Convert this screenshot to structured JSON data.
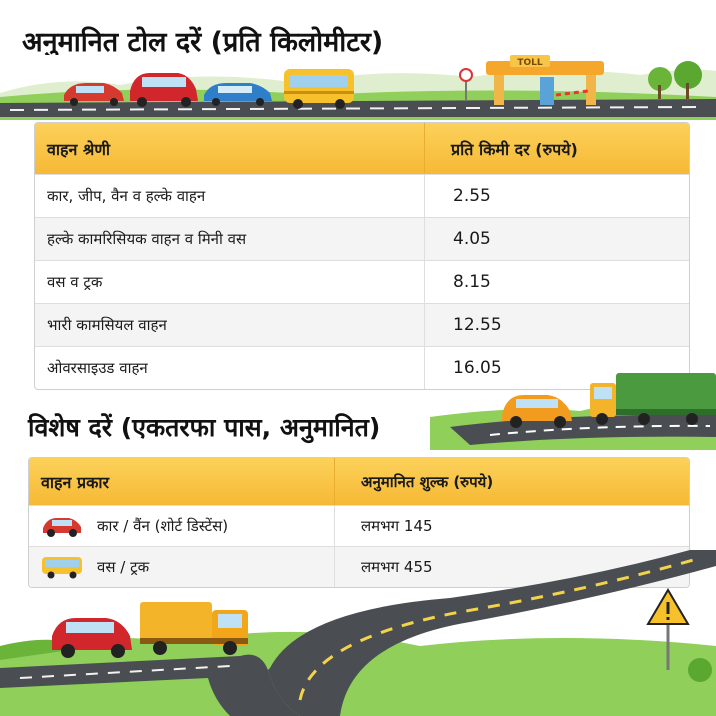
{
  "title": "अनुमानित टोल दरें (प्रति किलोमीटर)",
  "toll_sign": "TOLL",
  "rate_table": {
    "headers": [
      "वाहन श्रेणी",
      "प्रति किमी दर (रुपये)"
    ],
    "rows": [
      {
        "category": "कार, जीप, वैन व हल्के वाहन",
        "rate": "2.55"
      },
      {
        "category": "हल्के कामरिसियक वाहन व मिनी वस",
        "rate": "4.05"
      },
      {
        "category": "वस व ट्रक",
        "rate": "8.15"
      },
      {
        "category": "भारी कामसियल वाहन",
        "rate": "12.55"
      },
      {
        "category": "ओवरसाइउड वाहन",
        "rate": "16.05"
      }
    ]
  },
  "special_title": "विशेष दरें (एकतरफा पास, अनुमानित)",
  "special_table": {
    "headers": [
      "वाहन प्रकार",
      "अनुमानित शुल्क (रुपये)"
    ],
    "rows": [
      {
        "icon": "red-car-icon",
        "type": "कार / वैंन (शोर्ट डिस्टेंस)",
        "fee": "लमभग 145"
      },
      {
        "icon": "yellow-bus-icon",
        "type": "वस / ट्रक",
        "fee": "लमभग 455"
      }
    ]
  },
  "colors": {
    "header_yellow": "#f6b935",
    "road": "#4a4d52",
    "grass": "#7cc242"
  }
}
